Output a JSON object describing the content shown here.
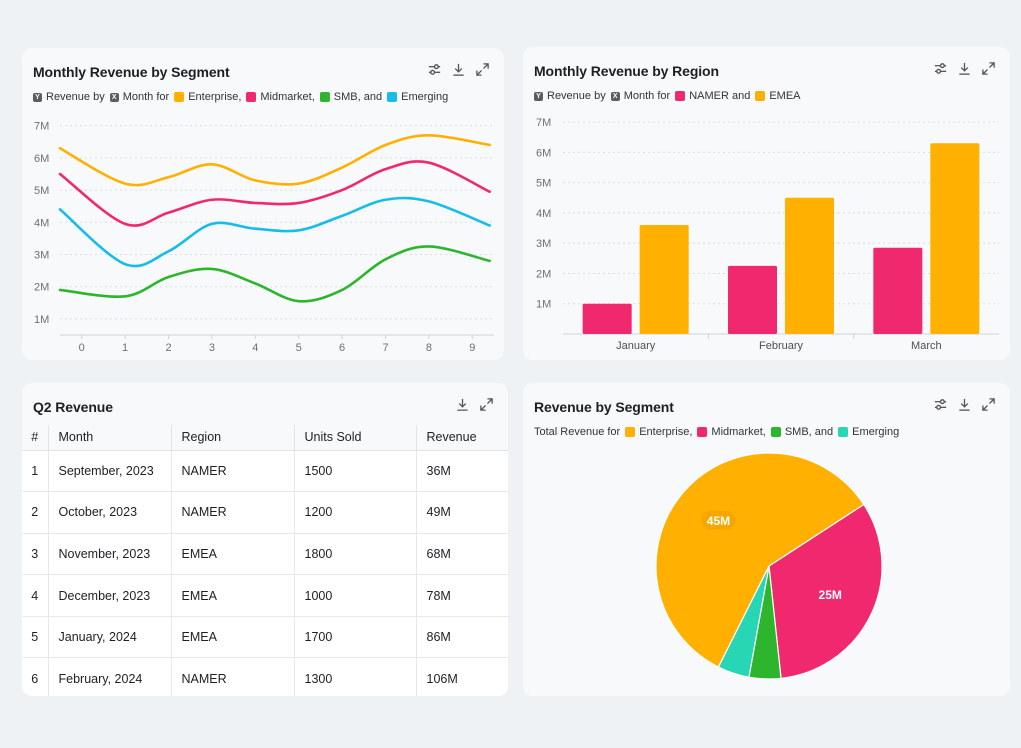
{
  "icons": {
    "filter": "sliders-icon",
    "download": "download-icon",
    "expand": "expand-icon"
  },
  "line_card": {
    "title": "Monthly Revenue by Segment",
    "legend": {
      "y_chip": "Y",
      "y_text": "Revenue by",
      "x_chip": "X",
      "x_text": "Month for",
      "items": [
        "Enterprise,",
        "Midmarket,",
        "SMB, and",
        "Emerging"
      ]
    }
  },
  "bar_card": {
    "title": "Monthly Revenue by Region",
    "legend": {
      "y_chip": "Y",
      "y_text": "Revenue by",
      "x_chip": "X",
      "x_text": "Month for",
      "items": [
        "NAMER and",
        "EMEA"
      ]
    }
  },
  "table_card": {
    "title": "Q2 Revenue",
    "columns": [
      "#",
      "Month",
      "Region",
      "Units Sold",
      "Revenue"
    ],
    "rows": [
      [
        "1",
        "September, 2023",
        "NAMER",
        "1500",
        "36M"
      ],
      [
        "2",
        "October, 2023",
        "NAMER",
        "1200",
        "49M"
      ],
      [
        "3",
        "November, 2023",
        "EMEA",
        "1800",
        "68M"
      ],
      [
        "4",
        "December, 2023",
        "EMEA",
        "1000",
        "78M"
      ],
      [
        "5",
        "January, 2024",
        "EMEA",
        "1700",
        "86M"
      ],
      [
        "6",
        "February, 2024",
        "NAMER",
        "1300",
        "106M"
      ]
    ]
  },
  "pie_card": {
    "title": "Revenue by Segment",
    "legend": {
      "lead": "Total Revenue for",
      "items": [
        "Enterprise,",
        "Midmarket,",
        "SMB, and",
        "Emerging"
      ]
    }
  },
  "chart_data": [
    {
      "type": "line",
      "title": "Monthly Revenue by Segment",
      "x": [
        0,
        1,
        2,
        3,
        4,
        5,
        6,
        7,
        8,
        9
      ],
      "xlim": [
        -0.5,
        9.5
      ],
      "ylim": [
        0.5,
        7.3
      ],
      "yticks": [
        1,
        2,
        3,
        4,
        5,
        6,
        7
      ],
      "ytick_labels": [
        "1M",
        "2M",
        "3M",
        "4M",
        "5M",
        "6M",
        "7M"
      ],
      "grid": true,
      "series": [
        {
          "name": "Enterprise",
          "color": "#ffb000",
          "x": [
            -0.5,
            1,
            2,
            3,
            4,
            5,
            6,
            7,
            8,
            9.4
          ],
          "values": [
            6.3,
            5.2,
            5.4,
            5.8,
            5.3,
            5.2,
            5.7,
            6.4,
            6.7,
            6.4
          ]
        },
        {
          "name": "Midmarket",
          "color": "#f0286e",
          "x": [
            -0.5,
            1,
            2,
            3,
            4,
            5,
            6,
            7,
            8,
            9.4
          ],
          "values": [
            5.5,
            3.95,
            4.3,
            4.7,
            4.6,
            4.6,
            5.0,
            5.65,
            5.85,
            4.95
          ]
        },
        {
          "name": "SMB",
          "color": "#2db52d",
          "x": [
            -0.5,
            1,
            2,
            3,
            4,
            5,
            6,
            7,
            8,
            9.4
          ],
          "values": [
            1.9,
            1.7,
            2.3,
            2.55,
            2.1,
            1.55,
            1.9,
            2.85,
            3.25,
            2.8
          ]
        },
        {
          "name": "Emerging",
          "color": "#17bde8",
          "x": [
            -0.5,
            1,
            2,
            3,
            4,
            5,
            6,
            7,
            8,
            9.4
          ],
          "values": [
            4.4,
            2.7,
            3.1,
            3.95,
            3.8,
            3.75,
            4.2,
            4.7,
            4.65,
            3.9
          ]
        }
      ]
    },
    {
      "type": "bar",
      "title": "Monthly Revenue by Region",
      "categories": [
        "January",
        "February",
        "March"
      ],
      "ylim": [
        0,
        7.3
      ],
      "yticks": [
        1,
        2,
        3,
        4,
        5,
        6,
        7
      ],
      "ytick_labels": [
        "1M",
        "2M",
        "3M",
        "4M",
        "5M",
        "6M",
        "7M"
      ],
      "grid": true,
      "series": [
        {
          "name": "NAMER",
          "color": "#f0286e",
          "values": [
            1.0,
            2.25,
            2.85
          ]
        },
        {
          "name": "EMEA",
          "color": "#ffb000",
          "values": [
            3.6,
            4.5,
            6.3
          ]
        }
      ]
    },
    {
      "type": "pie",
      "title": "Revenue by Segment",
      "labels": [
        "Midmarket",
        "SMB",
        "Emerging",
        "Enterprise"
      ],
      "values": [
        25,
        3.5,
        3.5,
        45
      ],
      "slice_labels": [
        "25M",
        "",
        "",
        "45M"
      ],
      "colors": [
        "#f0286e",
        "#2db52d",
        "#26d6b4",
        "#ffb000"
      ],
      "start_angle_deg": -33
    }
  ]
}
